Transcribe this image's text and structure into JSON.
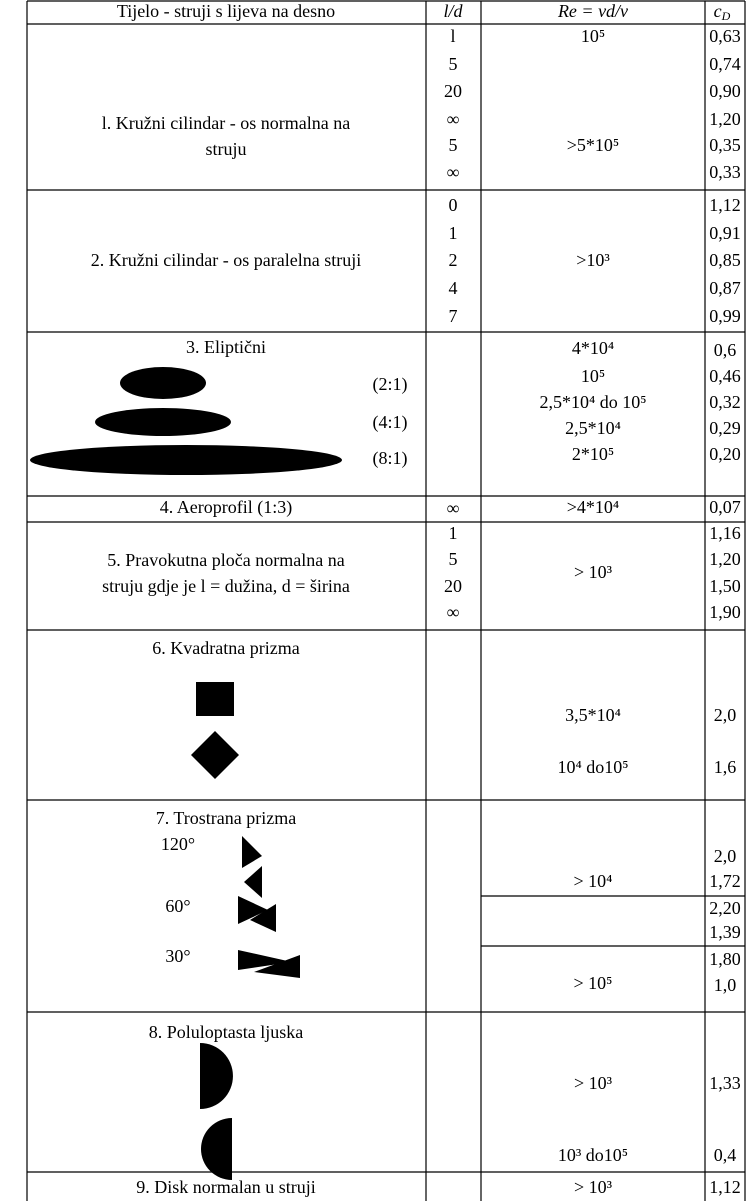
{
  "header": {
    "body": "Tijelo -  struji s lijeva na desno",
    "ld": "l/d",
    "re": "Re = vd/ν",
    "cd": {
      "symbol": "c",
      "subscript": "D"
    }
  },
  "rows": [
    {
      "title": [
        "l. Kružni cilindar  - os normalna na",
        "struju"
      ],
      "ld": [
        "l",
        "5",
        "20",
        "∞",
        "5",
        "∞"
      ],
      "re": [
        "10⁵",
        ">5*10⁵"
      ],
      "cd": [
        "0,63",
        "0,74",
        "0,90",
        "1,20",
        "0,35",
        "0,33"
      ]
    },
    {
      "title": [
        "2. Kružni cilindar  - os paralelna struji"
      ],
      "ld": [
        "0",
        "1",
        "2",
        "4",
        "7"
      ],
      "re": [
        ">10³"
      ],
      "cd": [
        "1,12",
        "0,91",
        "0,85",
        "0,87",
        "0,99"
      ]
    },
    {
      "title": [
        "3. Eliptični"
      ],
      "ratios": [
        "(2:1)",
        "(4:1)",
        "(8:1)"
      ],
      "re": [
        "4*10⁴",
        "10⁵",
        "2,5*10⁴ do 10⁵",
        "2,5*10⁴",
        "2*10⁵"
      ],
      "cd": [
        "0,6",
        "0,46",
        "0,32",
        "0,29",
        "0,20"
      ]
    },
    {
      "title": [
        "4. Aeroprofil (1:3)"
      ],
      "ld": [
        "∞"
      ],
      "re": [
        ">4*10⁴"
      ],
      "cd": [
        "0,07"
      ]
    },
    {
      "title": [
        "5. Pravokutna ploča normalna na",
        "struju gdje je l = dužina, d = širina"
      ],
      "ld": [
        "1",
        "5",
        "20",
        "∞"
      ],
      "re": [
        "> 10³"
      ],
      "cd": [
        "1,16",
        "1,20",
        "1,50",
        "1,90"
      ]
    },
    {
      "title": [
        "6. Kvadratna prizma"
      ],
      "re": [
        "3,5*10⁴",
        "10⁴ do10⁵"
      ],
      "cd": [
        "2,0",
        "1,6"
      ]
    },
    {
      "title": [
        "7. Trostrana prizma"
      ],
      "angles": [
        "120°",
        "60°",
        "30°"
      ],
      "re": [
        "> 10⁴",
        "> 10⁵"
      ],
      "cd": [
        "2,0",
        "1,72",
        "2,20",
        "1,39",
        "1,80",
        "1,0"
      ]
    },
    {
      "title": [
        "8. Poluloptasta ljuska"
      ],
      "re": [
        "> 10³",
        "10³ do10⁵"
      ],
      "cd": [
        "1,33",
        "0,4"
      ]
    },
    {
      "title": [
        "9. Disk normalan u struji"
      ],
      "re": [
        "> 10³"
      ],
      "cd": [
        "1,12"
      ]
    }
  ]
}
